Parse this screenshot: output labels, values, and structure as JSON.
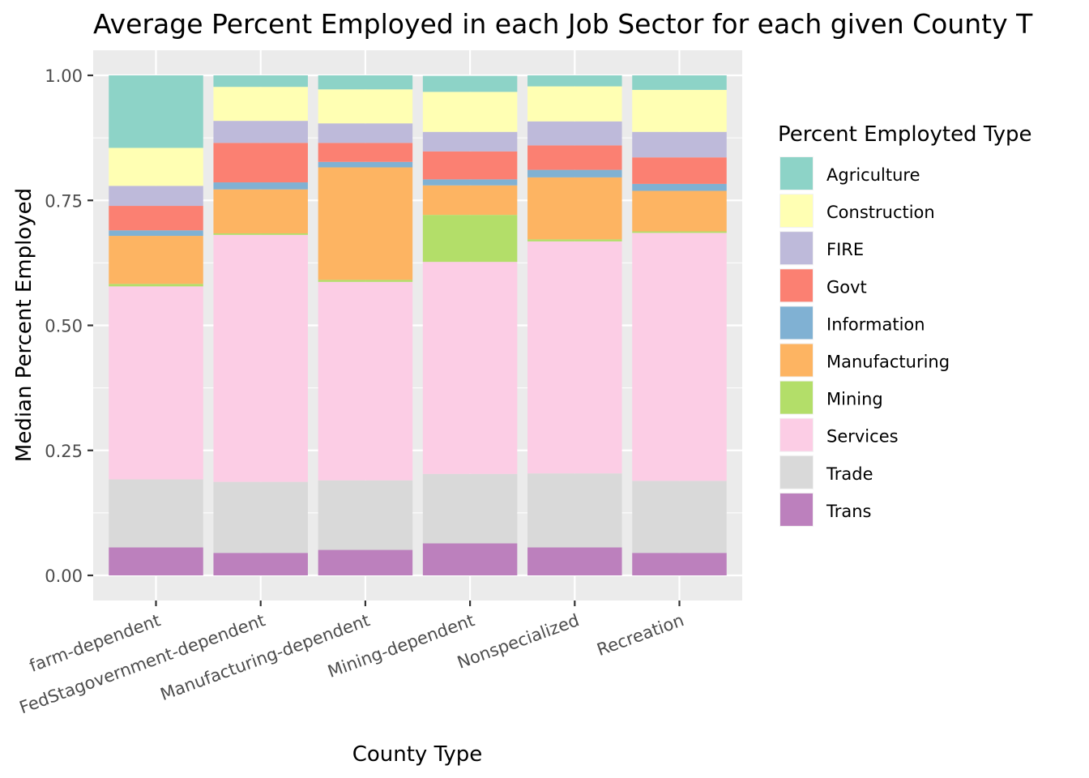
{
  "chart_data": {
    "type": "bar",
    "stacked": true,
    "title": "Average Percent Employed in each Job Sector for each given County T",
    "xlabel": "County Type",
    "ylabel": "Median Percent Employed",
    "ylim": [
      0,
      1
    ],
    "y_ticks": [
      0,
      0.25,
      0.5,
      0.75,
      1
    ],
    "y_tick_labels": [
      "0.00",
      "0.25",
      "0.50",
      "0.75",
      "1.00"
    ],
    "categories": [
      "farm-dependent",
      "FedStagovernment-dependent",
      "Manufacturing-dependent",
      "Mining-dependent",
      "Nonspecialized",
      "Recreation"
    ],
    "legend_title": "Percent Employted Type",
    "legend_position": "right",
    "grid": true,
    "series": [
      {
        "name": "Agriculture",
        "color": "#8DD3C7",
        "values": [
          0.145,
          0.023,
          0.028,
          0.032,
          0.022,
          0.029
        ]
      },
      {
        "name": "Construction",
        "color": "#FFFFB3",
        "values": [
          0.076,
          0.068,
          0.068,
          0.08,
          0.07,
          0.084
        ]
      },
      {
        "name": "FIRE",
        "color": "#BEBADA",
        "values": [
          0.04,
          0.044,
          0.039,
          0.039,
          0.048,
          0.051
        ]
      },
      {
        "name": "Govt",
        "color": "#FB8072",
        "values": [
          0.049,
          0.079,
          0.038,
          0.056,
          0.049,
          0.053
        ]
      },
      {
        "name": "Information",
        "color": "#80B1D3",
        "values": [
          0.011,
          0.014,
          0.011,
          0.012,
          0.015,
          0.014
        ]
      },
      {
        "name": "Manufacturing",
        "color": "#FDB462",
        "values": [
          0.096,
          0.088,
          0.225,
          0.059,
          0.124,
          0.081
        ]
      },
      {
        "name": "Mining",
        "color": "#B3DE69",
        "values": [
          0.005,
          0.003,
          0.004,
          0.094,
          0.004,
          0.003
        ]
      },
      {
        "name": "Services",
        "color": "#FCCDE5",
        "values": [
          0.386,
          0.494,
          0.397,
          0.424,
          0.464,
          0.496
        ]
      },
      {
        "name": "Trade",
        "color": "#D9D9D9",
        "values": [
          0.136,
          0.142,
          0.139,
          0.139,
          0.148,
          0.144
        ]
      },
      {
        "name": "Trans",
        "color": "#BC80BD",
        "values": [
          0.056,
          0.045,
          0.051,
          0.064,
          0.056,
          0.045
        ]
      }
    ]
  }
}
